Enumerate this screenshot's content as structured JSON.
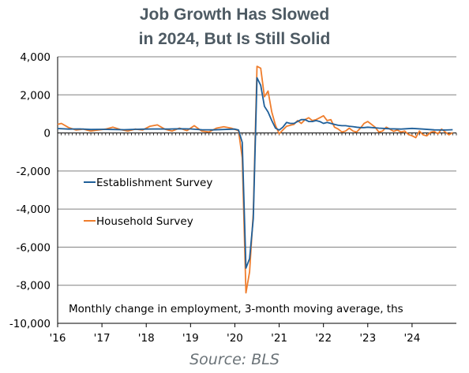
{
  "chart_data": {
    "type": "line",
    "title": [
      "Job Growth Has Slowed",
      "in 2024, But Is Still Solid"
    ],
    "note": "Monthly change in employment, 3-month moving average, ths",
    "source": "Source: BLS",
    "ylim": [
      -10000,
      4000
    ],
    "y_ticks": [
      4000,
      2000,
      0,
      -2000,
      -4000,
      -6000,
      -8000,
      -10000
    ],
    "y_tick_labels": [
      "4,000",
      "2,000",
      "0",
      "-2,000",
      "-4,000",
      "-6,000",
      "-8,000",
      "-10,000"
    ],
    "x_ticks": [
      2016,
      2017,
      2018,
      2019,
      2020,
      2021,
      2022,
      2023,
      2024
    ],
    "x_tick_labels": [
      "'16",
      "'17",
      "'18",
      "'19",
      "'20",
      "'21",
      "'22",
      "'23",
      "'24"
    ],
    "xlim": [
      "2016-01",
      "2024-12"
    ],
    "grid": "horizontal",
    "legend_position": "center-left",
    "colors": {
      "establishment": "#1f5f99",
      "household": "#ef7d2c",
      "grid": "#808080",
      "axis": "#000000"
    },
    "series": [
      {
        "name": "Establishment Survey",
        "color": "#1f5f99",
        "points": [
          [
            "2016-01",
            230
          ],
          [
            "2016-04",
            200
          ],
          [
            "2016-07",
            210
          ],
          [
            "2016-10",
            180
          ],
          [
            "2017-01",
            190
          ],
          [
            "2017-04",
            180
          ],
          [
            "2017-07",
            170
          ],
          [
            "2017-10",
            190
          ],
          [
            "2018-01",
            200
          ],
          [
            "2018-04",
            210
          ],
          [
            "2018-07",
            200
          ],
          [
            "2018-10",
            220
          ],
          [
            "2019-01",
            210
          ],
          [
            "2019-04",
            170
          ],
          [
            "2019-07",
            160
          ],
          [
            "2019-10",
            180
          ],
          [
            "2020-01",
            200
          ],
          [
            "2020-02",
            150
          ],
          [
            "2020-03",
            -500
          ],
          [
            "2020-04",
            -7100
          ],
          [
            "2020-05",
            -6600
          ],
          [
            "2020-06",
            -4500
          ],
          [
            "2020-07",
            2900
          ],
          [
            "2020-08",
            2500
          ],
          [
            "2020-09",
            1400
          ],
          [
            "2020-10",
            1100
          ],
          [
            "2020-11",
            650
          ],
          [
            "2020-12",
            250
          ],
          [
            "2021-01",
            150
          ],
          [
            "2021-02",
            300
          ],
          [
            "2021-03",
            550
          ],
          [
            "2021-04",
            500
          ],
          [
            "2021-05",
            500
          ],
          [
            "2021-06",
            600
          ],
          [
            "2021-07",
            700
          ],
          [
            "2021-08",
            700
          ],
          [
            "2021-09",
            600
          ],
          [
            "2021-10",
            600
          ],
          [
            "2021-11",
            650
          ],
          [
            "2021-12",
            600
          ],
          [
            "2022-01",
            500
          ],
          [
            "2022-02",
            550
          ],
          [
            "2022-03",
            500
          ],
          [
            "2022-04",
            450
          ],
          [
            "2022-05",
            400
          ],
          [
            "2022-06",
            380
          ],
          [
            "2022-07",
            380
          ],
          [
            "2022-08",
            350
          ],
          [
            "2022-09",
            330
          ],
          [
            "2022-10",
            300
          ],
          [
            "2022-11",
            280
          ],
          [
            "2022-12",
            280
          ],
          [
            "2023-01",
            300
          ],
          [
            "2023-04",
            250
          ],
          [
            "2023-07",
            220
          ],
          [
            "2023-10",
            200
          ],
          [
            "2024-01",
            240
          ],
          [
            "2024-04",
            200
          ],
          [
            "2024-07",
            160
          ],
          [
            "2024-10",
            150
          ],
          [
            "2024-12",
            170
          ]
        ]
      },
      {
        "name": "Household Survey",
        "color": "#ef7d2c",
        "points": [
          [
            "2016-01",
            450
          ],
          [
            "2016-02",
            500
          ],
          [
            "2016-04",
            280
          ],
          [
            "2016-06",
            150
          ],
          [
            "2016-08",
            200
          ],
          [
            "2016-10",
            100
          ],
          [
            "2016-12",
            150
          ],
          [
            "2017-02",
            200
          ],
          [
            "2017-04",
            300
          ],
          [
            "2017-06",
            180
          ],
          [
            "2017-08",
            100
          ],
          [
            "2017-10",
            200
          ],
          [
            "2017-12",
            150
          ],
          [
            "2018-02",
            350
          ],
          [
            "2018-04",
            420
          ],
          [
            "2018-06",
            200
          ],
          [
            "2018-08",
            100
          ],
          [
            "2018-10",
            250
          ],
          [
            "2018-12",
            120
          ],
          [
            "2019-02",
            380
          ],
          [
            "2019-04",
            100
          ],
          [
            "2019-06",
            50
          ],
          [
            "2019-08",
            250
          ],
          [
            "2019-10",
            320
          ],
          [
            "2019-12",
            250
          ],
          [
            "2020-02",
            120
          ],
          [
            "2020-03",
            -1300
          ],
          [
            "2020-04",
            -8400
          ],
          [
            "2020-05",
            -7300
          ],
          [
            "2020-06",
            -4200
          ],
          [
            "2020-07",
            3500
          ],
          [
            "2020-08",
            3400
          ],
          [
            "2020-09",
            1900
          ],
          [
            "2020-10",
            2200
          ],
          [
            "2020-11",
            1100
          ],
          [
            "2020-12",
            400
          ],
          [
            "2021-01",
            -50
          ],
          [
            "2021-02",
            150
          ],
          [
            "2021-03",
            350
          ],
          [
            "2021-04",
            400
          ],
          [
            "2021-05",
            450
          ],
          [
            "2021-06",
            650
          ],
          [
            "2021-07",
            500
          ],
          [
            "2021-08",
            700
          ],
          [
            "2021-09",
            800
          ],
          [
            "2021-10",
            650
          ],
          [
            "2021-11",
            700
          ],
          [
            "2021-12",
            800
          ],
          [
            "2022-01",
            900
          ],
          [
            "2022-02",
            650
          ],
          [
            "2022-03",
            700
          ],
          [
            "2022-04",
            300
          ],
          [
            "2022-05",
            200
          ],
          [
            "2022-06",
            50
          ],
          [
            "2022-07",
            100
          ],
          [
            "2022-08",
            250
          ],
          [
            "2022-09",
            100
          ],
          [
            "2022-10",
            50
          ],
          [
            "2022-11",
            250
          ],
          [
            "2022-12",
            500
          ],
          [
            "2023-01",
            600
          ],
          [
            "2023-02",
            450
          ],
          [
            "2023-03",
            300
          ],
          [
            "2023-04",
            50
          ],
          [
            "2023-05",
            100
          ],
          [
            "2023-06",
            300
          ],
          [
            "2023-07",
            200
          ],
          [
            "2023-08",
            80
          ],
          [
            "2023-09",
            150
          ],
          [
            "2023-10",
            50
          ],
          [
            "2023-11",
            100
          ],
          [
            "2023-12",
            -80
          ],
          [
            "2024-01",
            -150
          ],
          [
            "2024-02",
            -250
          ],
          [
            "2024-03",
            100
          ],
          [
            "2024-04",
            -100
          ],
          [
            "2024-05",
            -150
          ],
          [
            "2024-06",
            30
          ],
          [
            "2024-07",
            80
          ],
          [
            "2024-08",
            -50
          ],
          [
            "2024-09",
            200
          ],
          [
            "2024-10",
            50
          ],
          [
            "2024-11",
            -100
          ],
          [
            "2024-12",
            20
          ]
        ]
      }
    ]
  }
}
